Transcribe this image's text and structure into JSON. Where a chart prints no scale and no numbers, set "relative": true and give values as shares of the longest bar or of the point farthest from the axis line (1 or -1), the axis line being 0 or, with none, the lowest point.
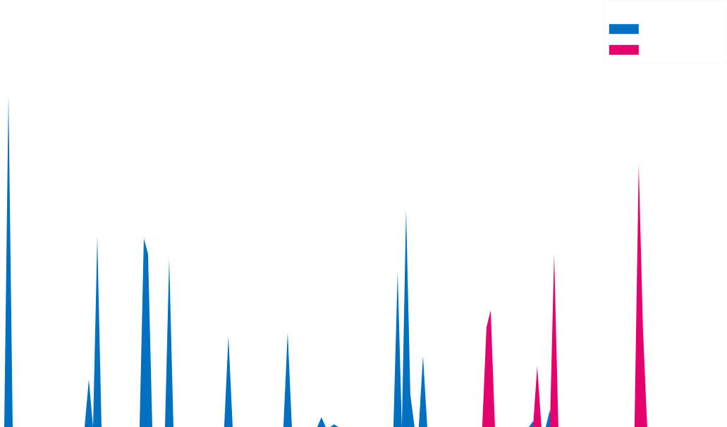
{
  "chart_data": {
    "type": "area",
    "relative": true,
    "categories": [
      null,
      null,
      null,
      null,
      null,
      null,
      null,
      null,
      null,
      null,
      null,
      null,
      null,
      null,
      null,
      null,
      null,
      null,
      null,
      null,
      null,
      null,
      null,
      null,
      null,
      null,
      null,
      null,
      null,
      null,
      null,
      null,
      null,
      null,
      null,
      null,
      null,
      null,
      null,
      null,
      null,
      null,
      null,
      null,
      null,
      null,
      null,
      null,
      null,
      null,
      null,
      null,
      null,
      null,
      null,
      null,
      null,
      null,
      null,
      null,
      null,
      null,
      null,
      null,
      null,
      null,
      null,
      null,
      null,
      null,
      null,
      null,
      null,
      null,
      null,
      null,
      null,
      null,
      null,
      null,
      null,
      null,
      null,
      null,
      null,
      null,
      null,
      null,
      null,
      null,
      null,
      null,
      null,
      null,
      null,
      null,
      null,
      null,
      null,
      null,
      null,
      null,
      null,
      null,
      null,
      null,
      null,
      null,
      null,
      null,
      null,
      null,
      null,
      null,
      null,
      null,
      null,
      null,
      null,
      null,
      null,
      null,
      null,
      null,
      null,
      null,
      null,
      null,
      null,
      null,
      null,
      null,
      null,
      null,
      null,
      null,
      null,
      null,
      null,
      null,
      null,
      null,
      null,
      null,
      null,
      null,
      null,
      null,
      null,
      null,
      null,
      null,
      null,
      null,
      null,
      null,
      null,
      null,
      null,
      null,
      null,
      null,
      null,
      null,
      null,
      null,
      null,
      null,
      null,
      null,
      null,
      null
    ],
    "series": [
      {
        "color": "#0070c0",
        "values": [
          0,
          0,
          1,
          0,
          0,
          0,
          0,
          0,
          0,
          0,
          0,
          0,
          0,
          0,
          0,
          0,
          0,
          0,
          0,
          0,
          0,
          0.144,
          0,
          0.575,
          0,
          0,
          0,
          0,
          0,
          0,
          0,
          0,
          0,
          0,
          0.569,
          0.522,
          0,
          0,
          0,
          0,
          0.507,
          0,
          0,
          0,
          0,
          0,
          0,
          0,
          0,
          0,
          0,
          0,
          0,
          0,
          0.274,
          0,
          0,
          0,
          0,
          0,
          0,
          0,
          0,
          0,
          0,
          0,
          0,
          0,
          0.285,
          0,
          0,
          0,
          0,
          0,
          0,
          0,
          0.03,
          0,
          0,
          0.008,
          0,
          0,
          0,
          0,
          0,
          0,
          0,
          0,
          0,
          0,
          0,
          0,
          0,
          0,
          0.465,
          0,
          0.656,
          0.098,
          0,
          0,
          0.214,
          0,
          0,
          0,
          0,
          0,
          0,
          0,
          0,
          0,
          0,
          0,
          0,
          0,
          0,
          0,
          0,
          0,
          0,
          0,
          0,
          0,
          0,
          0,
          0,
          0,
          0.017,
          0,
          0,
          0,
          0.051,
          0,
          0,
          0,
          0,
          0,
          0,
          0,
          0,
          0,
          0,
          0,
          0,
          0,
          0,
          0,
          0,
          0,
          0,
          0,
          0,
          0,
          0,
          0,
          0,
          0,
          0,
          0,
          0,
          0,
          0,
          0,
          0,
          0,
          0,
          0,
          0,
          0,
          0,
          0,
          0,
          0
        ]
      },
      {
        "color": "#e5006d",
        "values": [
          0,
          0,
          0,
          0,
          0,
          0,
          0,
          0,
          0,
          0,
          0,
          0,
          0,
          0,
          0,
          0,
          0,
          0,
          0,
          0,
          0,
          0,
          0,
          0,
          0,
          0,
          0,
          0,
          0,
          0,
          0,
          0,
          0,
          0,
          0,
          0,
          0,
          0,
          0,
          0,
          0,
          0,
          0,
          0,
          0,
          0,
          0,
          0,
          0,
          0,
          0,
          0,
          0,
          0,
          0,
          0,
          0,
          0,
          0,
          0,
          0,
          0,
          0,
          0,
          0,
          0,
          0,
          0,
          0,
          0,
          0,
          0,
          0,
          0,
          0,
          0,
          0,
          0,
          0,
          0,
          0,
          0,
          0,
          0,
          0,
          0,
          0,
          0,
          0,
          0,
          0,
          0,
          0,
          0,
          0,
          0,
          0,
          0,
          0,
          0,
          0,
          0,
          0,
          0,
          0,
          0,
          0,
          0,
          0,
          0,
          0,
          0,
          0,
          0,
          0,
          0.3,
          0.352,
          0,
          0,
          0,
          0,
          0,
          0,
          0,
          0,
          0,
          0,
          0.183,
          0,
          0,
          0,
          0.522,
          0,
          0,
          0,
          0,
          0,
          0,
          0,
          0,
          0,
          0,
          0,
          0,
          0,
          0,
          0,
          0,
          0,
          0,
          0,
          0.792,
          0.293,
          0,
          0,
          0,
          0,
          0,
          0,
          0,
          0,
          0,
          0,
          0,
          0,
          0,
          0,
          0,
          0,
          0,
          0,
          0
        ]
      }
    ]
  }
}
